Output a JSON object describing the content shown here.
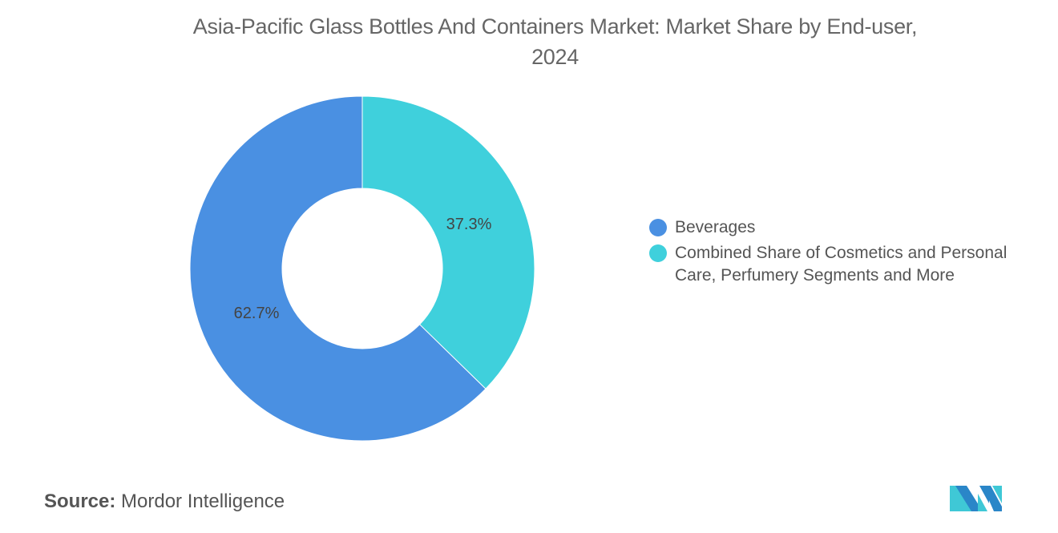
{
  "chart_data": {
    "type": "pie",
    "donut": true,
    "title_line1": "Asia-Pacific Glass Bottles And Containers Market: Market Share by End-user,",
    "title_line2": "2024",
    "categories": [
      "Beverages",
      "Combined Share of Cosmetics and Personal Care, Perfumery Segments and More"
    ],
    "values": [
      62.7,
      37.3
    ],
    "data_labels": [
      "62.7%",
      "37.3%"
    ],
    "colors": [
      "#4a90e2",
      "#3fd0dc"
    ],
    "legend_placement": "right",
    "legend": [
      "Beverages",
      "Combined Share of Cosmetics and Personal",
      "Care, Perfumery Segments and More"
    ]
  },
  "source": {
    "label": "Source:",
    "value": "Mordor Intelligence"
  },
  "logo": {
    "text": "Mordor Intelligence"
  }
}
